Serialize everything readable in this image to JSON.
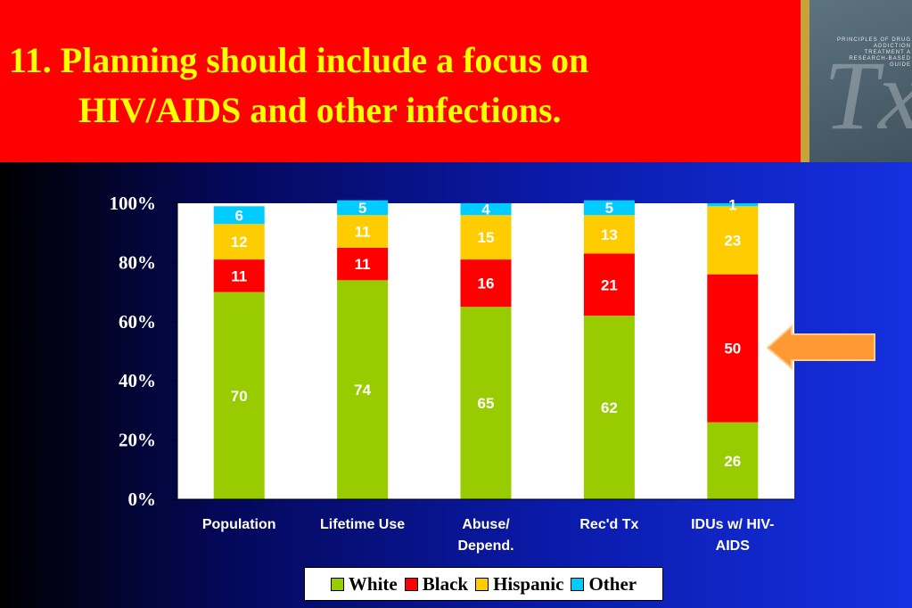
{
  "slide": {
    "title_line1": "11. Planning should include a focus on",
    "title_line2": "HIV/AIDS and other infections.",
    "cover_text": "PRINCIPLES OF DRUG ADDICTION TREATMENT A RESEARCH-BASED GUIDE",
    "cover_mark": "Tx"
  },
  "chart_data": {
    "type": "bar",
    "stacked": true,
    "categories": [
      [
        "Population"
      ],
      [
        "Lifetime Use"
      ],
      [
        "Abuse/",
        "Depend."
      ],
      [
        "Rec'd Tx"
      ],
      [
        "IDUs w/ HIV-",
        "AIDS"
      ]
    ],
    "series": [
      {
        "name": "White",
        "color": "#99cc00",
        "values": [
          70,
          74,
          65,
          62,
          26
        ]
      },
      {
        "name": "Black",
        "color": "#ff0000",
        "values": [
          11,
          11,
          16,
          21,
          50
        ]
      },
      {
        "name": "Hispanic",
        "color": "#ffcc00",
        "values": [
          12,
          11,
          15,
          13,
          23
        ]
      },
      {
        "name": "Other",
        "color": "#00ccff",
        "values": [
          6,
          5,
          4,
          5,
          1
        ]
      }
    ],
    "y_ticks": [
      "0%",
      "20%",
      "40%",
      "60%",
      "80%",
      "100%"
    ],
    "ylim": [
      0,
      100
    ],
    "grid": false,
    "legend_position": "bottom",
    "annotation": "orange arrow pointing at IDUs w/ HIV-AIDS"
  }
}
